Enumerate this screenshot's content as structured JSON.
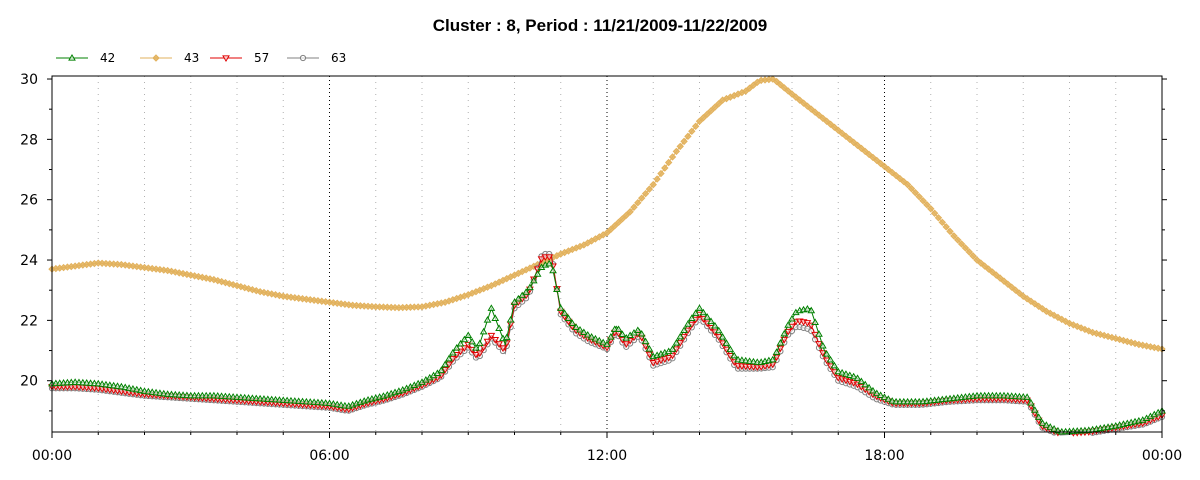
{
  "chart_data": {
    "type": "line",
    "title": "Cluster : 8, Period : 11/21/2009-11/22/2009",
    "xlabel": "",
    "ylabel": "",
    "x_ticks": [
      "00:00",
      "06:00",
      "12:00",
      "18:00",
      "00:00"
    ],
    "y_ticks": [
      "20",
      "22",
      "24",
      "26",
      "28",
      "30"
    ],
    "xlim": [
      0,
      24
    ],
    "ylim": [
      18.3,
      30.1
    ],
    "grid": "vertical dotted at hours, dense dotted minor",
    "legend_position": "top-left",
    "series": [
      {
        "name": "42",
        "color": "#008000",
        "marker": "triangle-up",
        "points": [
          [
            0,
            19.9
          ],
          [
            0.5,
            19.95
          ],
          [
            1,
            19.9
          ],
          [
            1.5,
            19.8
          ],
          [
            2,
            19.65
          ],
          [
            2.5,
            19.55
          ],
          [
            3,
            19.5
          ],
          [
            3.5,
            19.5
          ],
          [
            4,
            19.45
          ],
          [
            4.5,
            19.4
          ],
          [
            5,
            19.35
          ],
          [
            5.5,
            19.3
          ],
          [
            6,
            19.25
          ],
          [
            6.4,
            19.15
          ],
          [
            6.8,
            19.35
          ],
          [
            7.2,
            19.5
          ],
          [
            7.6,
            19.7
          ],
          [
            8,
            19.95
          ],
          [
            8.4,
            20.3
          ],
          [
            8.7,
            21.0
          ],
          [
            9.0,
            21.5
          ],
          [
            9.2,
            21.0
          ],
          [
            9.5,
            22.4
          ],
          [
            9.8,
            21.2
          ],
          [
            10.0,
            22.6
          ],
          [
            10.3,
            23.0
          ],
          [
            10.6,
            23.8
          ],
          [
            10.8,
            23.9
          ],
          [
            11.0,
            22.4
          ],
          [
            11.3,
            21.8
          ],
          [
            11.6,
            21.5
          ],
          [
            12.0,
            21.2
          ],
          [
            12.2,
            21.8
          ],
          [
            12.4,
            21.4
          ],
          [
            12.7,
            21.7
          ],
          [
            13.0,
            20.8
          ],
          [
            13.4,
            21.0
          ],
          [
            13.8,
            22.0
          ],
          [
            14.0,
            22.4
          ],
          [
            14.4,
            21.7
          ],
          [
            14.8,
            20.7
          ],
          [
            15.3,
            20.6
          ],
          [
            15.6,
            20.7
          ],
          [
            15.9,
            21.8
          ],
          [
            16.1,
            22.3
          ],
          [
            16.4,
            22.4
          ],
          [
            16.7,
            21.0
          ],
          [
            17.0,
            20.3
          ],
          [
            17.4,
            20.1
          ],
          [
            17.8,
            19.6
          ],
          [
            18.2,
            19.3
          ],
          [
            18.8,
            19.3
          ],
          [
            19.4,
            19.4
          ],
          [
            20.0,
            19.5
          ],
          [
            20.6,
            19.5
          ],
          [
            21.1,
            19.45
          ],
          [
            21.4,
            18.6
          ],
          [
            21.8,
            18.3
          ],
          [
            22.4,
            18.35
          ],
          [
            23.0,
            18.5
          ],
          [
            23.6,
            18.7
          ],
          [
            24,
            19.0
          ]
        ]
      },
      {
        "name": "43",
        "color": "#e2b15c",
        "marker": "diamond",
        "points": [
          [
            0,
            23.7
          ],
          [
            0.5,
            23.8
          ],
          [
            1,
            23.9
          ],
          [
            1.5,
            23.85
          ],
          [
            2,
            23.75
          ],
          [
            2.5,
            23.65
          ],
          [
            3,
            23.5
          ],
          [
            3.5,
            23.35
          ],
          [
            4,
            23.15
          ],
          [
            4.5,
            22.95
          ],
          [
            5,
            22.8
          ],
          [
            5.5,
            22.7
          ],
          [
            6,
            22.6
          ],
          [
            6.5,
            22.5
          ],
          [
            7,
            22.45
          ],
          [
            7.5,
            22.42
          ],
          [
            8,
            22.45
          ],
          [
            8.5,
            22.6
          ],
          [
            9,
            22.85
          ],
          [
            9.5,
            23.15
          ],
          [
            10,
            23.5
          ],
          [
            10.5,
            23.85
          ],
          [
            11,
            24.2
          ],
          [
            11.5,
            24.5
          ],
          [
            12,
            24.9
          ],
          [
            12.5,
            25.6
          ],
          [
            13,
            26.5
          ],
          [
            13.5,
            27.6
          ],
          [
            14,
            28.6
          ],
          [
            14.5,
            29.3
          ],
          [
            15,
            29.6
          ],
          [
            15.3,
            29.95
          ],
          [
            15.6,
            30.0
          ],
          [
            16,
            29.5
          ],
          [
            16.5,
            28.9
          ],
          [
            17,
            28.3
          ],
          [
            17.5,
            27.7
          ],
          [
            18,
            27.1
          ],
          [
            18.5,
            26.5
          ],
          [
            19,
            25.7
          ],
          [
            19.5,
            24.8
          ],
          [
            20,
            24.0
          ],
          [
            20.5,
            23.4
          ],
          [
            21,
            22.8
          ],
          [
            21.5,
            22.3
          ],
          [
            22,
            21.9
          ],
          [
            22.5,
            21.6
          ],
          [
            23,
            21.4
          ],
          [
            23.5,
            21.2
          ],
          [
            24,
            21.05
          ]
        ]
      },
      {
        "name": "57",
        "color": "#e00000",
        "marker": "triangle-down",
        "points": [
          [
            0,
            19.8
          ],
          [
            0.5,
            19.8
          ],
          [
            1,
            19.75
          ],
          [
            1.5,
            19.65
          ],
          [
            2,
            19.55
          ],
          [
            2.5,
            19.5
          ],
          [
            3,
            19.45
          ],
          [
            3.5,
            19.4
          ],
          [
            4,
            19.35
          ],
          [
            4.5,
            19.3
          ],
          [
            5,
            19.25
          ],
          [
            5.5,
            19.2
          ],
          [
            6,
            19.15
          ],
          [
            6.4,
            19.05
          ],
          [
            6.8,
            19.25
          ],
          [
            7.2,
            19.4
          ],
          [
            7.6,
            19.6
          ],
          [
            8,
            19.85
          ],
          [
            8.4,
            20.15
          ],
          [
            8.7,
            20.8
          ],
          [
            9.0,
            21.2
          ],
          [
            9.2,
            20.8
          ],
          [
            9.5,
            21.5
          ],
          [
            9.8,
            21.0
          ],
          [
            10.0,
            22.5
          ],
          [
            10.3,
            22.9
          ],
          [
            10.6,
            24.1
          ],
          [
            10.8,
            24.1
          ],
          [
            11.0,
            22.3
          ],
          [
            11.3,
            21.7
          ],
          [
            11.6,
            21.4
          ],
          [
            12.0,
            21.1
          ],
          [
            12.2,
            21.7
          ],
          [
            12.4,
            21.2
          ],
          [
            12.7,
            21.6
          ],
          [
            13.0,
            20.6
          ],
          [
            13.4,
            20.8
          ],
          [
            13.8,
            21.8
          ],
          [
            14.0,
            22.2
          ],
          [
            14.4,
            21.5
          ],
          [
            14.8,
            20.5
          ],
          [
            15.3,
            20.45
          ],
          [
            15.6,
            20.55
          ],
          [
            15.9,
            21.6
          ],
          [
            16.1,
            22.0
          ],
          [
            16.4,
            21.9
          ],
          [
            16.7,
            20.8
          ],
          [
            17.0,
            20.1
          ],
          [
            17.4,
            19.9
          ],
          [
            17.8,
            19.5
          ],
          [
            18.2,
            19.25
          ],
          [
            18.8,
            19.25
          ],
          [
            19.4,
            19.35
          ],
          [
            20.0,
            19.4
          ],
          [
            20.6,
            19.4
          ],
          [
            21.1,
            19.35
          ],
          [
            21.4,
            18.5
          ],
          [
            21.8,
            18.25
          ],
          [
            22.4,
            18.3
          ],
          [
            23.0,
            18.45
          ],
          [
            23.6,
            18.6
          ],
          [
            24,
            18.85
          ]
        ]
      },
      {
        "name": "63",
        "color": "#808080",
        "marker": "circle",
        "points": [
          [
            0,
            19.75
          ],
          [
            0.5,
            19.75
          ],
          [
            1,
            19.7
          ],
          [
            1.5,
            19.6
          ],
          [
            2,
            19.5
          ],
          [
            2.5,
            19.45
          ],
          [
            3,
            19.4
          ],
          [
            3.5,
            19.35
          ],
          [
            4,
            19.3
          ],
          [
            4.5,
            19.25
          ],
          [
            5,
            19.2
          ],
          [
            5.5,
            19.15
          ],
          [
            6,
            19.1
          ],
          [
            6.4,
            19.0
          ],
          [
            6.8,
            19.2
          ],
          [
            7.2,
            19.35
          ],
          [
            7.6,
            19.55
          ],
          [
            8,
            19.8
          ],
          [
            8.4,
            20.1
          ],
          [
            8.7,
            20.7
          ],
          [
            9.0,
            21.1
          ],
          [
            9.2,
            20.7
          ],
          [
            9.5,
            21.4
          ],
          [
            9.8,
            20.9
          ],
          [
            10.0,
            22.4
          ],
          [
            10.3,
            22.8
          ],
          [
            10.6,
            24.2
          ],
          [
            10.8,
            24.2
          ],
          [
            11.0,
            22.2
          ],
          [
            11.3,
            21.6
          ],
          [
            11.6,
            21.3
          ],
          [
            12.0,
            21.05
          ],
          [
            12.2,
            21.6
          ],
          [
            12.4,
            21.1
          ],
          [
            12.7,
            21.5
          ],
          [
            13.0,
            20.5
          ],
          [
            13.4,
            20.7
          ],
          [
            13.8,
            21.7
          ],
          [
            14.0,
            22.1
          ],
          [
            14.4,
            21.4
          ],
          [
            14.8,
            20.4
          ],
          [
            15.3,
            20.4
          ],
          [
            15.6,
            20.45
          ],
          [
            15.9,
            21.5
          ],
          [
            16.1,
            21.8
          ],
          [
            16.4,
            21.7
          ],
          [
            16.7,
            20.7
          ],
          [
            17.0,
            20.0
          ],
          [
            17.4,
            19.8
          ],
          [
            17.8,
            19.4
          ],
          [
            18.2,
            19.2
          ],
          [
            18.8,
            19.2
          ],
          [
            19.4,
            19.3
          ],
          [
            20.0,
            19.35
          ],
          [
            20.6,
            19.35
          ],
          [
            21.1,
            19.3
          ],
          [
            21.4,
            18.45
          ],
          [
            21.8,
            18.2
          ],
          [
            22.4,
            18.25
          ],
          [
            23.0,
            18.4
          ],
          [
            23.6,
            18.55
          ],
          [
            24,
            18.8
          ]
        ]
      }
    ]
  }
}
